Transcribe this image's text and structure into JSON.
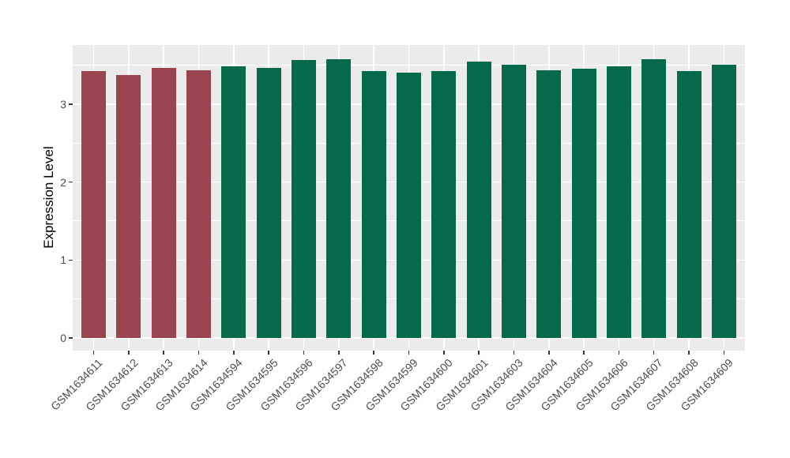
{
  "chart_data": {
    "type": "bar",
    "title": "",
    "xlabel": "",
    "ylabel": "Expression Level",
    "ylim": [
      0,
      3.76
    ],
    "yticks_major": [
      0,
      1,
      2,
      3
    ],
    "yticks_minor": [
      0.5,
      1.5,
      2.5,
      3.5
    ],
    "grid": "on",
    "legend": "none",
    "panel_background_color": "#EBEBEB",
    "gridline_color": "#FFFFFF",
    "tick_label_color": "#4D4D4D",
    "axis_title_color": "#000000",
    "categories": [
      "GSM1634611",
      "GSM1634612",
      "GSM1634613",
      "GSM1634614",
      "GSM1634594",
      "GSM1634595",
      "GSM1634596",
      "GSM1634597",
      "GSM1634598",
      "GSM1634599",
      "GSM1634600",
      "GSM1634601",
      "GSM1634603",
      "GSM1634604",
      "GSM1634605",
      "GSM1634606",
      "GSM1634607",
      "GSM1634608",
      "GSM1634609"
    ],
    "values": [
      3.42,
      3.37,
      3.46,
      3.43,
      3.49,
      3.47,
      3.57,
      3.58,
      3.42,
      3.4,
      3.42,
      3.55,
      3.51,
      3.43,
      3.45,
      3.49,
      3.58,
      3.42,
      3.51
    ],
    "group_colors": {
      "first_group": "#9A4450",
      "second_group": "#046A4B"
    },
    "bar_colors": [
      "#9A4450",
      "#9A4450",
      "#9A4450",
      "#9A4450",
      "#046A4B",
      "#046A4B",
      "#046A4B",
      "#046A4B",
      "#046A4B",
      "#046A4B",
      "#046A4B",
      "#046A4B",
      "#046A4B",
      "#046A4B",
      "#046A4B",
      "#046A4B",
      "#046A4B",
      "#046A4B",
      "#046A4B"
    ]
  }
}
